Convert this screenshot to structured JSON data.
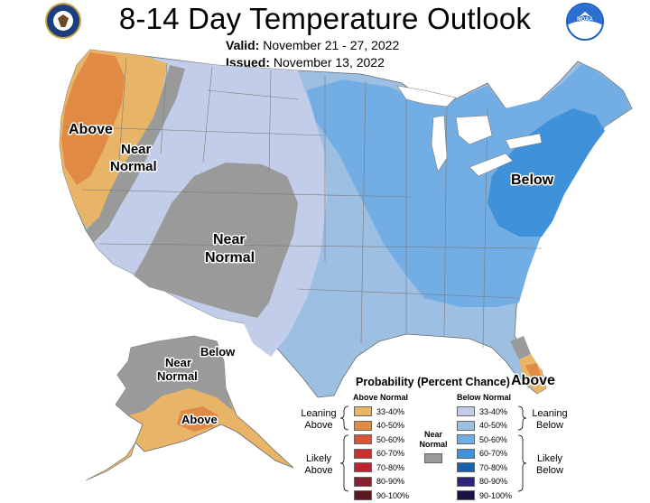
{
  "header": {
    "title": "8-14 Day Temperature Outlook",
    "valid_label": "Valid:",
    "valid_value": "November 21 - 27, 2022",
    "issued_label": "Issued:",
    "issued_value": "November 13, 2022",
    "logo_right_text": "NOAA"
  },
  "map_labels": {
    "above_west": "Above",
    "near_normal_west_1": "Near",
    "near_normal_west_2": "Normal",
    "near_normal_center_1": "Near",
    "near_normal_center_2": "Normal",
    "below_east": "Below",
    "above_florida": "Above",
    "alaska_near_1": "Near",
    "alaska_near_2": "Normal",
    "alaska_below": "Below",
    "alaska_above": "Above"
  },
  "legend": {
    "title": "Probability (Percent Chance)",
    "above_header": "Above Normal",
    "below_header": "Below Normal",
    "near_label_1": "Near",
    "near_label_2": "Normal",
    "leaning_above_1": "Leaning",
    "leaning_above_2": "Above",
    "likely_above_1": "Likely",
    "likely_above_2": "Above",
    "leaning_below_1": "Leaning",
    "leaning_below_2": "Below",
    "likely_below_1": "Likely",
    "likely_below_2": "Below",
    "above_bins": [
      "33-40%",
      "40-50%",
      "50-60%",
      "60-70%",
      "70-80%",
      "80-90%",
      "90-100%"
    ],
    "below_bins": [
      "33-40%",
      "40-50%",
      "50-60%",
      "60-70%",
      "70-80%",
      "80-90%",
      "90-100%"
    ],
    "above_colors": [
      "#e8b468",
      "#e08a44",
      "#d8553a",
      "#c8312e",
      "#bd2233",
      "#892030",
      "#5c1a1e"
    ],
    "below_colors": [
      "#c2cde9",
      "#9cbfe2",
      "#72aee3",
      "#3f92da",
      "#1a5fac",
      "#2c2478",
      "#1b1346"
    ],
    "near_color": "#9a9a9a"
  }
}
